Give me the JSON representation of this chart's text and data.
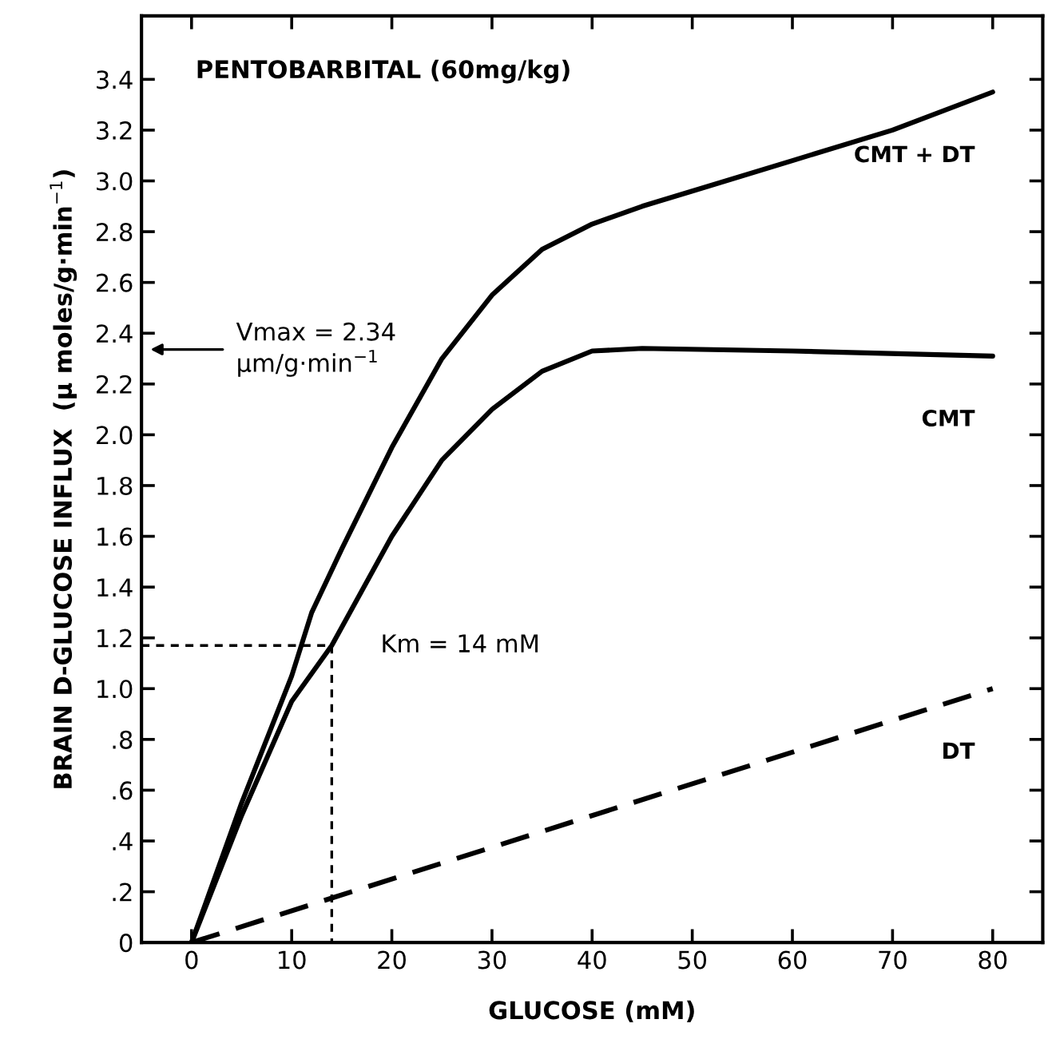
{
  "chart_data": {
    "type": "line",
    "title": "PENTOBARBITAL (60mg/kg)",
    "xlabel": "GLUCOSE (mM)",
    "ylabel": "BRAIN D-GLUCOSE INFLUX  (μ moles/g·min$^{−1}$)",
    "xlim": [
      -5,
      85
    ],
    "ylim": [
      0,
      3.65
    ],
    "xticks": [
      0,
      10,
      20,
      30,
      40,
      50,
      60,
      70,
      80
    ],
    "yticks": [
      {
        "value": 0,
        "label": "0"
      },
      {
        "value": 0.2,
        "label": ".2"
      },
      {
        "value": 0.4,
        "label": ".4"
      },
      {
        "value": 0.6,
        "label": ".6"
      },
      {
        "value": 0.8,
        "label": ".8"
      },
      {
        "value": 1.0,
        "label": "1.0"
      },
      {
        "value": 1.2,
        "label": "1.2"
      },
      {
        "value": 1.4,
        "label": "1.4"
      },
      {
        "value": 1.6,
        "label": "1.6"
      },
      {
        "value": 1.8,
        "label": "1.8"
      },
      {
        "value": 2.0,
        "label": "2.0"
      },
      {
        "value": 2.2,
        "label": "2.2"
      },
      {
        "value": 2.4,
        "label": "2.4"
      },
      {
        "value": 2.6,
        "label": "2.6"
      },
      {
        "value": 2.8,
        "label": "2.8"
      },
      {
        "value": 3.0,
        "label": "3.0"
      },
      {
        "value": 3.2,
        "label": "3.2"
      },
      {
        "value": 3.4,
        "label": "3.4"
      }
    ],
    "grid": false,
    "legend": false,
    "marker": "none",
    "series": [
      {
        "name": "CMT + DT",
        "color": "#000000",
        "line_style": "solid",
        "x": [
          0,
          5,
          10,
          12,
          15,
          20,
          25,
          30,
          35,
          40,
          45,
          50,
          60,
          70,
          80
        ],
        "values": [
          0,
          0.55,
          1.05,
          1.3,
          1.55,
          1.95,
          2.3,
          2.55,
          2.73,
          2.83,
          2.9,
          2.96,
          3.08,
          3.2,
          3.35
        ]
      },
      {
        "name": "CMT",
        "color": "#000000",
        "line_style": "solid",
        "x": [
          0,
          5,
          10,
          14,
          20,
          25,
          30,
          35,
          40,
          45,
          60,
          80
        ],
        "values": [
          0,
          0.5,
          0.95,
          1.17,
          1.6,
          1.9,
          2.1,
          2.25,
          2.33,
          2.34,
          2.33,
          2.31
        ]
      },
      {
        "name": "DT",
        "color": "#000000",
        "line_style": "dashed",
        "x": [
          0,
          80
        ],
        "values": [
          0,
          1.0
        ]
      },
      {
        "color": "#000000",
        "line_style": "dotted",
        "x": [
          -5,
          14,
          14
        ],
        "values": [
          1.17,
          1.17,
          0
        ]
      }
    ],
    "annotations": [
      "Vmax = 2.34\nμm/g·min$^{−1}$",
      {
        "text": "Km = 14 mM",
        "x": 14,
        "y": 1.17
      }
    ]
  }
}
